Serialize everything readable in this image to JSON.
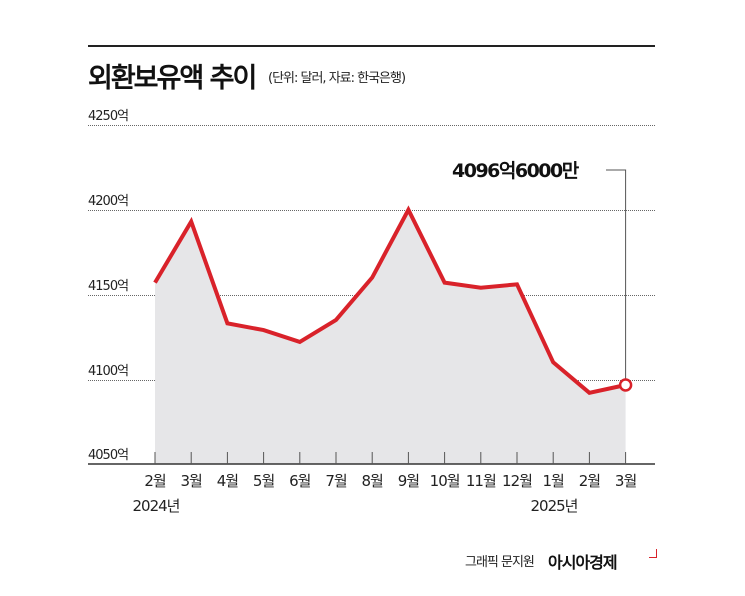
{
  "header": {
    "title": "외환보유액 추이",
    "subtitle": "(단위: 달러, 자료: 한국은행)"
  },
  "y_axis": {
    "ticks": [
      "4250억",
      "4200억",
      "4150억",
      "4100억",
      "4050억"
    ]
  },
  "x_axis": {
    "ticks": [
      "2월",
      "3월",
      "4월",
      "5월",
      "6월",
      "7월",
      "8월",
      "9월",
      "10월",
      "11월",
      "12월",
      "1월",
      "2월",
      "3월"
    ],
    "year_labels": [
      "2024년",
      "2025년"
    ]
  },
  "callout": {
    "label": "4096억6000만"
  },
  "footer": {
    "credit": "그래픽 문지원",
    "brand": "아시아경제"
  },
  "colors": {
    "line": "#d9222a",
    "area": "#e6e6e8",
    "grid": "#666666"
  },
  "chart_data": {
    "type": "area",
    "title": "외환보유액 추이",
    "subtitle": "(단위: 달러, 자료: 한국은행)",
    "xlabel": "",
    "ylabel": "억 달러",
    "categories": [
      "2024-02",
      "2024-03",
      "2024-04",
      "2024-05",
      "2024-06",
      "2024-07",
      "2024-08",
      "2024-09",
      "2024-10",
      "2024-11",
      "2024-12",
      "2025-01",
      "2025-02",
      "2025-03"
    ],
    "tick_labels": [
      "2월",
      "3월",
      "4월",
      "5월",
      "6월",
      "7월",
      "8월",
      "9월",
      "10월",
      "11월",
      "12월",
      "1월",
      "2월",
      "3월"
    ],
    "series": [
      {
        "name": "외환보유액",
        "unit": "억 달러",
        "values": [
          4157,
          4193,
          4133,
          4129,
          4122,
          4135,
          4160,
          4200,
          4157,
          4154,
          4156,
          4110,
          4092,
          4096.6
        ]
      }
    ],
    "ylim": [
      4050,
      4250
    ],
    "yticks": [
      4050,
      4100,
      4150,
      4200,
      4250
    ],
    "grid": true,
    "annotations": [
      {
        "x": "2025-03",
        "y": 4096.6,
        "text": "4096억6000만"
      }
    ],
    "legend": null
  }
}
